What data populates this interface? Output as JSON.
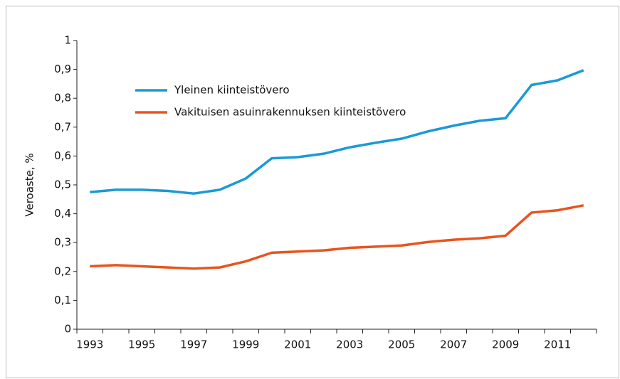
{
  "chart_data": {
    "type": "line",
    "y_label": "Veroaste, %",
    "categories": [
      "1993",
      null,
      "1995",
      null,
      "1997",
      null,
      "1999",
      null,
      "2001",
      null,
      "2003",
      null,
      "2005",
      null,
      "2007",
      null,
      "2009",
      null,
      "2011",
      null
    ],
    "series": [
      {
        "name": "Yleinen kiinteistövero",
        "color": "#1a9ad6",
        "values": [
          0.475,
          0.483,
          0.483,
          0.479,
          0.47,
          0.483,
          0.522,
          0.592,
          0.596,
          0.608,
          0.63,
          0.646,
          0.66,
          0.685,
          0.705,
          0.722,
          0.731,
          0.846,
          0.862,
          0.897
        ]
      },
      {
        "name": "Vakituisen asuinrakennuksen kiinteistövero",
        "color": "#e8541e",
        "values": [
          0.218,
          0.222,
          0.218,
          0.214,
          0.21,
          0.214,
          0.235,
          0.265,
          0.269,
          0.273,
          0.282,
          0.286,
          0.29,
          0.302,
          0.31,
          0.315,
          0.324,
          0.404,
          0.412,
          0.429
        ]
      }
    ],
    "ylim": [
      0,
      1
    ],
    "yticks": [
      0,
      {
        "value": 0.1,
        "label": "0,1"
      },
      {
        "value": 0.2,
        "label": "0,2"
      },
      {
        "value": 0.3,
        "label": "0,3"
      },
      {
        "value": 0.4,
        "label": "0,4"
      },
      {
        "value": 0.5,
        "label": "0,5"
      },
      {
        "value": 0.6,
        "label": "0,6"
      },
      {
        "value": 0.7,
        "label": "0,7"
      },
      {
        "value": 0.8,
        "label": "0,8"
      },
      {
        "value": 0.9,
        "label": "0,9"
      },
      1
    ],
    "legend": "upper left",
    "grid": false
  }
}
